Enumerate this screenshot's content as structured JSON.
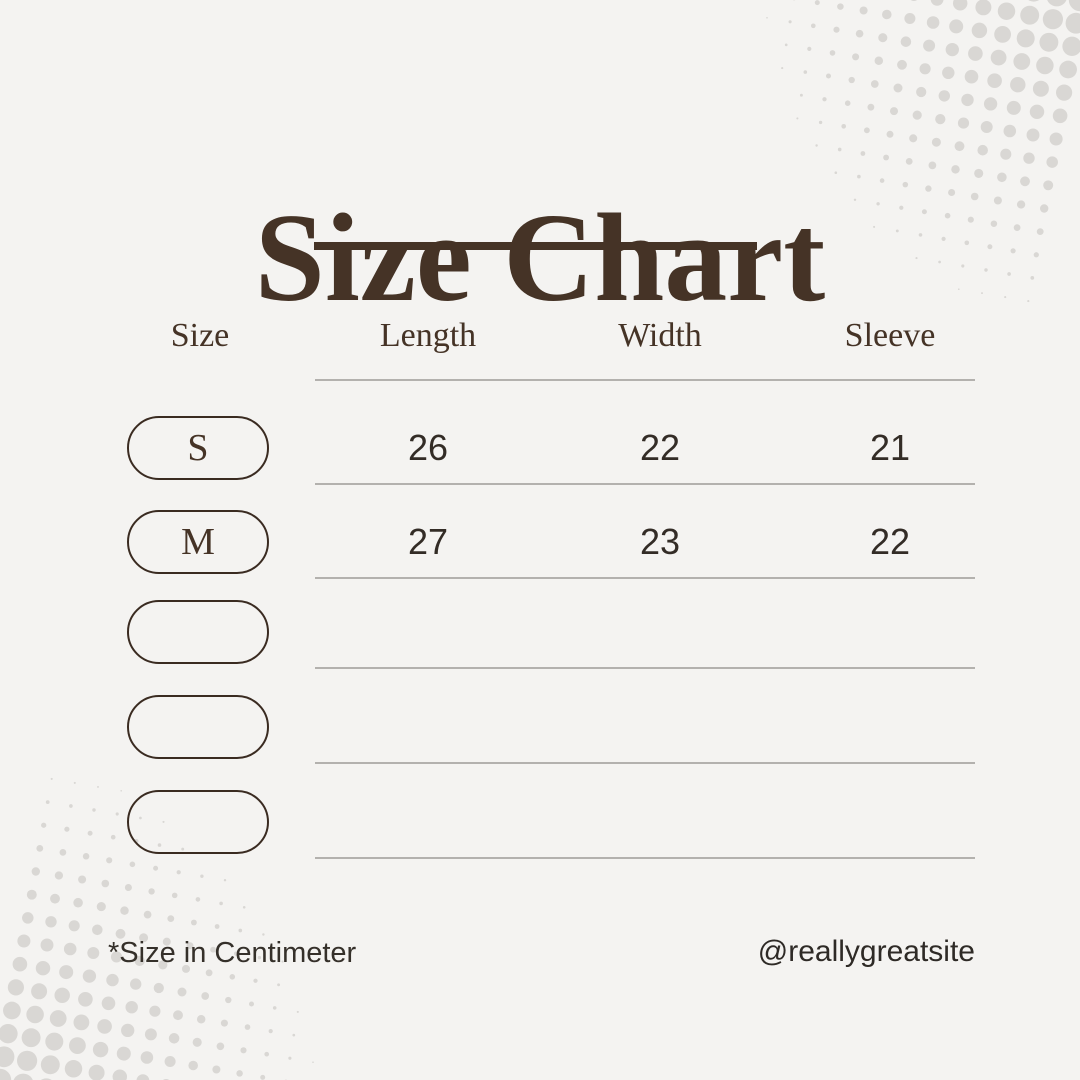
{
  "title": "Size Chart",
  "table": {
    "headers": [
      "Size",
      "Length",
      "Width",
      "Sleeve"
    ],
    "rows": [
      {
        "size": "S",
        "values": [
          "26",
          "22",
          "21"
        ]
      },
      {
        "size": "M",
        "values": [
          "27",
          "23",
          "22"
        ]
      },
      {
        "size": "",
        "values": [
          "",
          "",
          ""
        ]
      },
      {
        "size": "",
        "values": [
          "",
          "",
          ""
        ]
      },
      {
        "size": "",
        "values": [
          "",
          "",
          ""
        ]
      }
    ]
  },
  "footer": {
    "note": "*Size in Centimeter",
    "handle": "@reallygreatsite"
  },
  "colors": {
    "background": "#f4f3f1",
    "ink": "#453326",
    "pill-border": "#3a2b21",
    "number": "#332c26",
    "line": "#b3b1ae",
    "dot": "#d9d7d4",
    "footer-text": "#35302a"
  },
  "chart_data": {
    "type": "table",
    "title": "Size Chart",
    "columns": [
      "Size",
      "Length",
      "Width",
      "Sleeve"
    ],
    "rows": [
      [
        "S",
        26,
        22,
        21
      ],
      [
        "M",
        27,
        23,
        22
      ],
      [
        "",
        "",
        "",
        ""
      ],
      [
        "",
        "",
        "",
        ""
      ],
      [
        "",
        "",
        "",
        ""
      ]
    ],
    "units": "centimeter",
    "note": "*Size in Centimeter"
  }
}
